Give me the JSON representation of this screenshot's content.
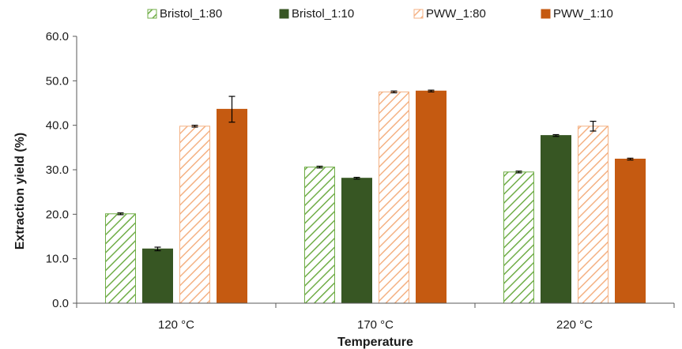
{
  "chart_data": {
    "type": "bar",
    "title": "",
    "xlabel": "Temperature",
    "ylabel": "Extraction yield (%)",
    "ylim": [
      0,
      60
    ],
    "yticks": [
      "0.0",
      "10.0",
      "20.0",
      "30.0",
      "40.0",
      "50.0",
      "60.0"
    ],
    "categories": [
      "120 °C",
      "170 °C",
      "220 °C"
    ],
    "legend_position": "top",
    "grid": false,
    "series": [
      {
        "name": "Bristol_1:80",
        "values": [
          20.1,
          30.6,
          29.5
        ],
        "errors": [
          0.2,
          0.2,
          0.2
        ],
        "color": "#70ad47",
        "pattern": "hatched"
      },
      {
        "name": "Bristol_1:10",
        "values": [
          12.2,
          28.1,
          37.7
        ],
        "errors": [
          0.4,
          0.2,
          0.2
        ],
        "color": "#375623",
        "pattern": "solid"
      },
      {
        "name": "PWW_1:80",
        "values": [
          39.8,
          47.5,
          39.8
        ],
        "errors": [
          0.2,
          0.2,
          1.1
        ],
        "color": "#f4b183",
        "pattern": "hatched"
      },
      {
        "name": "PWW_1:10",
        "values": [
          43.6,
          47.7,
          32.4
        ],
        "errors": [
          2.9,
          0.2,
          0.2
        ],
        "color": "#c55a11",
        "pattern": "solid"
      }
    ]
  }
}
